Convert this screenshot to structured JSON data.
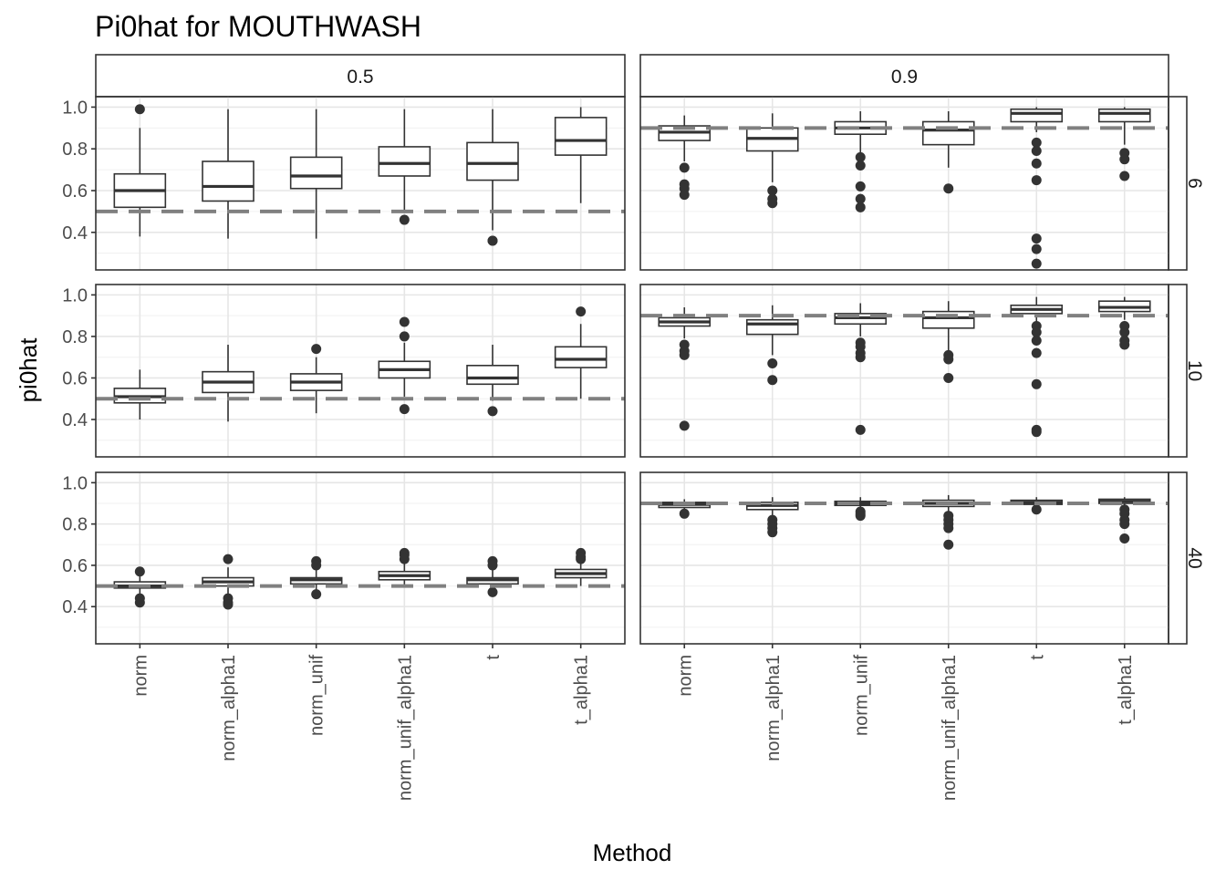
{
  "chart_data": {
    "type": "boxplot",
    "title": "Pi0hat for MOUTHWASH",
    "xlabel": "Method",
    "ylabel": "pi0hat",
    "ylim": [
      0.22,
      1.05
    ],
    "yticks": [
      "0.4",
      "0.6",
      "0.8",
      "1.0"
    ],
    "grid": true,
    "categories": [
      "norm",
      "norm_alpha1",
      "norm_unif",
      "norm_unif_alpha1",
      "t",
      "t_alpha1"
    ],
    "facet_cols": [
      "0.5",
      "0.9"
    ],
    "facet_rows": [
      "6",
      "10",
      "40"
    ],
    "panels": [
      {
        "col": "0.5",
        "row": "6",
        "reference": 0.5,
        "boxes": [
          {
            "min": 0.38,
            "q1": 0.52,
            "median": 0.6,
            "q3": 0.68,
            "max": 0.9,
            "outliers": [
              0.99
            ]
          },
          {
            "min": 0.37,
            "q1": 0.55,
            "median": 0.62,
            "q3": 0.74,
            "max": 0.99,
            "outliers": []
          },
          {
            "min": 0.37,
            "q1": 0.61,
            "median": 0.67,
            "q3": 0.76,
            "max": 0.99,
            "outliers": []
          },
          {
            "min": 0.5,
            "q1": 0.67,
            "median": 0.73,
            "q3": 0.81,
            "max": 0.99,
            "outliers": [
              0.46
            ]
          },
          {
            "min": 0.41,
            "q1": 0.65,
            "median": 0.73,
            "q3": 0.83,
            "max": 0.99,
            "outliers": [
              0.36,
              0.36
            ]
          },
          {
            "min": 0.54,
            "q1": 0.77,
            "median": 0.84,
            "q3": 0.95,
            "max": 1.0,
            "outliers": []
          }
        ]
      },
      {
        "col": "0.9",
        "row": "6",
        "reference": 0.9,
        "boxes": [
          {
            "min": 0.74,
            "q1": 0.84,
            "median": 0.88,
            "q3": 0.91,
            "max": 0.96,
            "outliers": [
              0.71,
              0.63,
              0.61,
              0.58
            ]
          },
          {
            "min": 0.64,
            "q1": 0.79,
            "median": 0.85,
            "q3": 0.9,
            "max": 0.97,
            "outliers": [
              0.6,
              0.56,
              0.54
            ]
          },
          {
            "min": 0.78,
            "q1": 0.87,
            "median": 0.9,
            "q3": 0.93,
            "max": 0.98,
            "outliers": [
              0.76,
              0.72,
              0.62,
              0.56,
              0.52
            ]
          },
          {
            "min": 0.71,
            "q1": 0.82,
            "median": 0.89,
            "q3": 0.93,
            "max": 0.98,
            "outliers": [
              0.61
            ]
          },
          {
            "min": 0.88,
            "q1": 0.93,
            "median": 0.97,
            "q3": 0.99,
            "max": 1.0,
            "outliers": [
              0.83,
              0.79,
              0.73,
              0.65,
              0.37,
              0.32,
              0.25
            ]
          },
          {
            "min": 0.82,
            "q1": 0.93,
            "median": 0.97,
            "q3": 0.99,
            "max": 1.0,
            "outliers": [
              0.78,
              0.75,
              0.67
            ]
          }
        ]
      },
      {
        "col": "0.5",
        "row": "10",
        "reference": 0.5,
        "boxes": [
          {
            "min": 0.4,
            "q1": 0.48,
            "median": 0.51,
            "q3": 0.55,
            "max": 0.64,
            "outliers": []
          },
          {
            "min": 0.39,
            "q1": 0.53,
            "median": 0.58,
            "q3": 0.63,
            "max": 0.76,
            "outliers": []
          },
          {
            "min": 0.43,
            "q1": 0.54,
            "median": 0.58,
            "q3": 0.62,
            "max": 0.7,
            "outliers": [
              0.74
            ]
          },
          {
            "min": 0.51,
            "q1": 0.6,
            "median": 0.64,
            "q3": 0.68,
            "max": 0.77,
            "outliers": [
              0.87,
              0.8,
              0.45
            ]
          },
          {
            "min": 0.49,
            "q1": 0.57,
            "median": 0.6,
            "q3": 0.66,
            "max": 0.76,
            "outliers": [
              0.44
            ]
          },
          {
            "min": 0.5,
            "q1": 0.65,
            "median": 0.69,
            "q3": 0.75,
            "max": 0.86,
            "outliers": [
              0.92
            ]
          }
        ]
      },
      {
        "col": "0.9",
        "row": "10",
        "reference": 0.9,
        "boxes": [
          {
            "min": 0.79,
            "q1": 0.85,
            "median": 0.87,
            "q3": 0.89,
            "max": 0.94,
            "outliers": [
              0.76,
              0.73,
              0.71,
              0.37
            ]
          },
          {
            "min": 0.71,
            "q1": 0.81,
            "median": 0.86,
            "q3": 0.88,
            "max": 0.95,
            "outliers": [
              0.67,
              0.59
            ]
          },
          {
            "min": 0.8,
            "q1": 0.86,
            "median": 0.89,
            "q3": 0.91,
            "max": 0.96,
            "outliers": [
              0.77,
              0.75,
              0.72,
              0.7,
              0.35
            ]
          },
          {
            "min": 0.73,
            "q1": 0.84,
            "median": 0.89,
            "q3": 0.92,
            "max": 0.97,
            "outliers": [
              0.71,
              0.69,
              0.6
            ]
          },
          {
            "min": 0.87,
            "q1": 0.91,
            "median": 0.93,
            "q3": 0.95,
            "max": 0.99,
            "outliers": [
              0.85,
              0.82,
              0.78,
              0.72,
              0.57,
              0.35,
              0.34
            ]
          },
          {
            "min": 0.88,
            "q1": 0.92,
            "median": 0.94,
            "q3": 0.97,
            "max": 0.99,
            "outliers": [
              0.85,
              0.82,
              0.78,
              0.76
            ]
          }
        ]
      },
      {
        "col": "0.5",
        "row": "40",
        "reference": 0.5,
        "boxes": [
          {
            "min": 0.45,
            "q1": 0.49,
            "median": 0.5,
            "q3": 0.52,
            "max": 0.56,
            "outliers": [
              0.57,
              0.44,
              0.42
            ]
          },
          {
            "min": 0.45,
            "q1": 0.5,
            "median": 0.52,
            "q3": 0.54,
            "max": 0.59,
            "outliers": [
              0.63,
              0.44,
              0.42,
              0.41
            ]
          },
          {
            "min": 0.48,
            "q1": 0.51,
            "median": 0.53,
            "q3": 0.54,
            "max": 0.58,
            "outliers": [
              0.62,
              0.6,
              0.46
            ]
          },
          {
            "min": 0.5,
            "q1": 0.53,
            "median": 0.55,
            "q3": 0.57,
            "max": 0.62,
            "outliers": [
              0.66,
              0.65,
              0.63
            ]
          },
          {
            "min": 0.48,
            "q1": 0.51,
            "median": 0.53,
            "q3": 0.54,
            "max": 0.58,
            "outliers": [
              0.62,
              0.6,
              0.47
            ]
          },
          {
            "min": 0.5,
            "q1": 0.54,
            "median": 0.56,
            "q3": 0.58,
            "max": 0.62,
            "outliers": [
              0.66,
              0.64,
              0.63
            ]
          }
        ]
      },
      {
        "col": "0.9",
        "row": "40",
        "reference": 0.9,
        "boxes": [
          {
            "min": 0.87,
            "q1": 0.88,
            "median": 0.895,
            "q3": 0.905,
            "max": 0.92,
            "outliers": [
              0.85
            ]
          },
          {
            "min": 0.84,
            "q1": 0.87,
            "median": 0.89,
            "q3": 0.905,
            "max": 0.93,
            "outliers": [
              0.82,
              0.8,
              0.78,
              0.76
            ]
          },
          {
            "min": 0.87,
            "q1": 0.89,
            "median": 0.9,
            "q3": 0.91,
            "max": 0.93,
            "outliers": [
              0.86,
              0.85,
              0.84
            ]
          },
          {
            "min": 0.86,
            "q1": 0.885,
            "median": 0.9,
            "q3": 0.915,
            "max": 0.94,
            "outliers": [
              0.84,
              0.82,
              0.8,
              0.78,
              0.7
            ]
          },
          {
            "min": 0.88,
            "q1": 0.895,
            "median": 0.905,
            "q3": 0.915,
            "max": 0.93,
            "outliers": [
              0.87
            ]
          },
          {
            "min": 0.88,
            "q1": 0.9,
            "median": 0.91,
            "q3": 0.92,
            "max": 0.93,
            "outliers": [
              0.87,
              0.85,
              0.82,
              0.8,
              0.73
            ]
          }
        ]
      }
    ]
  }
}
